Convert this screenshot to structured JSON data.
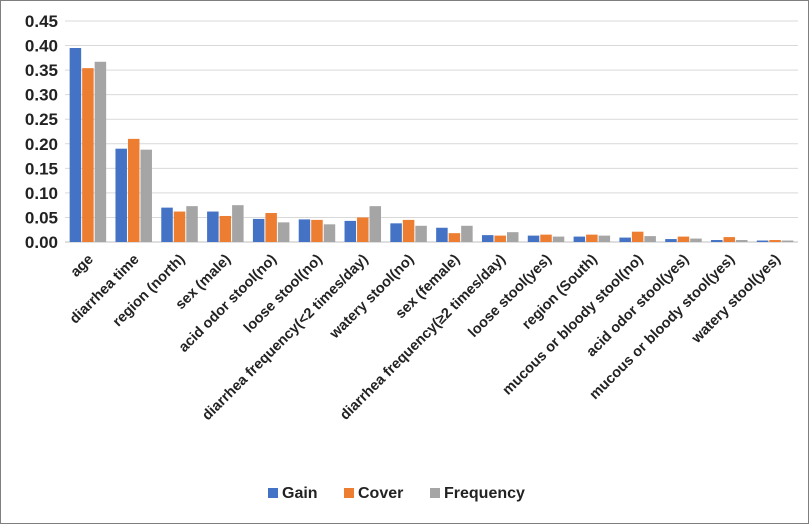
{
  "chart_data": {
    "type": "bar",
    "categories": [
      "age",
      "diarrhea time",
      "region (north)",
      "sex (male)",
      "acid odor stool(no)",
      "loose stool(no)",
      "diarrhea frequency(<2 times/day)",
      "watery stool(no)",
      "sex (female)",
      "diarrhea frequency(≥2 times/day)",
      "loose stool(yes)",
      "region (South)",
      "mucous or bloody stool(no)",
      "acid odor stool(yes)",
      "mucous or bloody stool(yes)",
      "watery stool(yes)"
    ],
    "series": [
      {
        "name": "Gain",
        "color": "#4472C4",
        "values": [
          0.395,
          0.19,
          0.07,
          0.062,
          0.047,
          0.046,
          0.043,
          0.038,
          0.029,
          0.014,
          0.013,
          0.011,
          0.009,
          0.006,
          0.004,
          0.003
        ]
      },
      {
        "name": "Cover",
        "color": "#ED7D31",
        "values": [
          0.354,
          0.21,
          0.062,
          0.053,
          0.059,
          0.045,
          0.05,
          0.045,
          0.018,
          0.013,
          0.015,
          0.015,
          0.021,
          0.011,
          0.01,
          0.004
        ]
      },
      {
        "name": "Frequency",
        "color": "#A5A5A5",
        "values": [
          0.367,
          0.188,
          0.073,
          0.075,
          0.04,
          0.036,
          0.073,
          0.033,
          0.033,
          0.02,
          0.011,
          0.013,
          0.012,
          0.007,
          0.004,
          0.003
        ]
      }
    ],
    "title": "",
    "xlabel": "",
    "ylabel": "",
    "ylim": [
      0,
      0.45
    ],
    "yticks": [
      "0.00",
      "0.05",
      "0.10",
      "0.15",
      "0.20",
      "0.25",
      "0.30",
      "0.35",
      "0.40",
      "0.45"
    ],
    "grid": true,
    "legend_position": "bottom"
  }
}
